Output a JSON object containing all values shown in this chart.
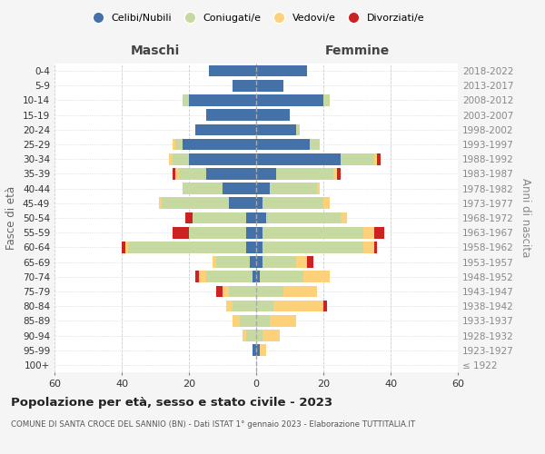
{
  "age_groups": [
    "100+",
    "95-99",
    "90-94",
    "85-89",
    "80-84",
    "75-79",
    "70-74",
    "65-69",
    "60-64",
    "55-59",
    "50-54",
    "45-49",
    "40-44",
    "35-39",
    "30-34",
    "25-29",
    "20-24",
    "15-19",
    "10-14",
    "5-9",
    "0-4"
  ],
  "birth_years": [
    "≤ 1922",
    "1923-1927",
    "1928-1932",
    "1933-1937",
    "1938-1942",
    "1943-1947",
    "1948-1952",
    "1953-1957",
    "1958-1962",
    "1963-1967",
    "1968-1972",
    "1973-1977",
    "1978-1982",
    "1983-1987",
    "1988-1992",
    "1993-1997",
    "1998-2002",
    "2003-2007",
    "2008-2012",
    "2013-2017",
    "2018-2022"
  ],
  "male": {
    "celibi": [
      0,
      1,
      0,
      0,
      0,
      0,
      1,
      2,
      3,
      3,
      3,
      8,
      10,
      15,
      20,
      22,
      18,
      15,
      20,
      7,
      14
    ],
    "coniugati": [
      0,
      0,
      3,
      5,
      7,
      8,
      14,
      10,
      35,
      17,
      16,
      20,
      12,
      8,
      5,
      2,
      0,
      0,
      2,
      0,
      0
    ],
    "vedovi": [
      0,
      0,
      1,
      2,
      2,
      2,
      2,
      1,
      1,
      0,
      0,
      1,
      0,
      1,
      1,
      1,
      0,
      0,
      0,
      0,
      0
    ],
    "divorziati": [
      0,
      0,
      0,
      0,
      0,
      2,
      1,
      0,
      1,
      5,
      2,
      0,
      0,
      1,
      0,
      0,
      0,
      0,
      0,
      0,
      0
    ]
  },
  "female": {
    "nubili": [
      0,
      1,
      0,
      0,
      0,
      0,
      1,
      2,
      2,
      2,
      3,
      2,
      4,
      6,
      25,
      16,
      12,
      10,
      20,
      8,
      15
    ],
    "coniugate": [
      0,
      0,
      2,
      4,
      5,
      8,
      13,
      10,
      30,
      30,
      22,
      18,
      14,
      17,
      10,
      3,
      1,
      0,
      2,
      0,
      0
    ],
    "vedove": [
      0,
      2,
      5,
      8,
      15,
      10,
      8,
      3,
      3,
      3,
      2,
      2,
      1,
      1,
      1,
      0,
      0,
      0,
      0,
      0,
      0
    ],
    "divorziate": [
      0,
      0,
      0,
      0,
      1,
      0,
      0,
      2,
      1,
      3,
      0,
      0,
      0,
      1,
      1,
      0,
      0,
      0,
      0,
      0,
      0
    ]
  },
  "colors": {
    "celibi": "#4472a8",
    "coniugati": "#c5d9a0",
    "vedovi": "#fcd17a",
    "divorziati": "#cc2222"
  },
  "xlim": 60,
  "title": "Popolazione per età, sesso e stato civile - 2023",
  "subtitle": "COMUNE DI SANTA CROCE DEL SANNIO (BN) - Dati ISTAT 1° gennaio 2023 - Elaborazione TUTTITALIA.IT",
  "ylabel_left": "Fasce di età",
  "ylabel_right": "Anni di nascita",
  "header_maschi": "Maschi",
  "header_femmine": "Femmine",
  "legend_labels": [
    "Celibi/Nubili",
    "Coniugati/e",
    "Vedovi/e",
    "Divorziati/e"
  ],
  "bg_color": "#f5f5f5",
  "plot_bg": "#ffffff"
}
